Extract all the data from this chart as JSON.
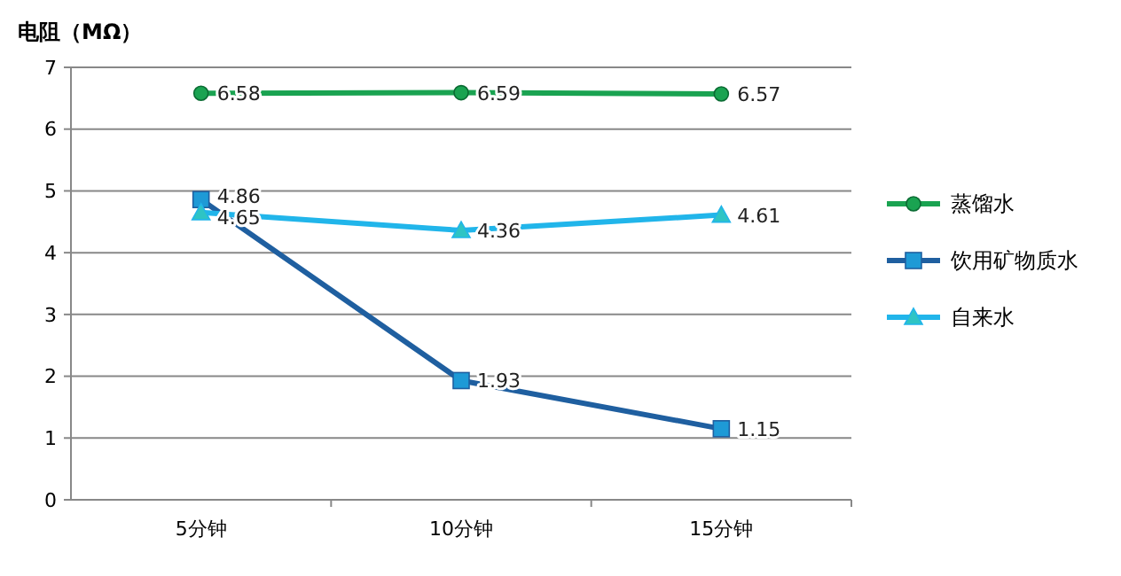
{
  "chart_data": {
    "type": "line",
    "ylabel": "电阻（MΩ）",
    "categories": [
      "5分钟",
      "10分钟",
      "15分钟"
    ],
    "series": [
      {
        "name": "蒸馏水",
        "color": "#1aa351",
        "marker": "circle",
        "values": [
          6.58,
          6.59,
          6.57
        ]
      },
      {
        "name": "饮用矿物质水",
        "color": "#1f5fa0",
        "marker": "square",
        "values": [
          4.86,
          1.93,
          1.15
        ]
      },
      {
        "name": "自来水",
        "color": "#21b5ea",
        "marker": "triangle",
        "values": [
          4.65,
          4.36,
          4.61
        ]
      }
    ],
    "ylim": [
      0,
      7
    ],
    "yticks": [
      0,
      1,
      2,
      3,
      4,
      5,
      6,
      7
    ],
    "grid": "y",
    "legend": "right",
    "data_labels": true
  }
}
